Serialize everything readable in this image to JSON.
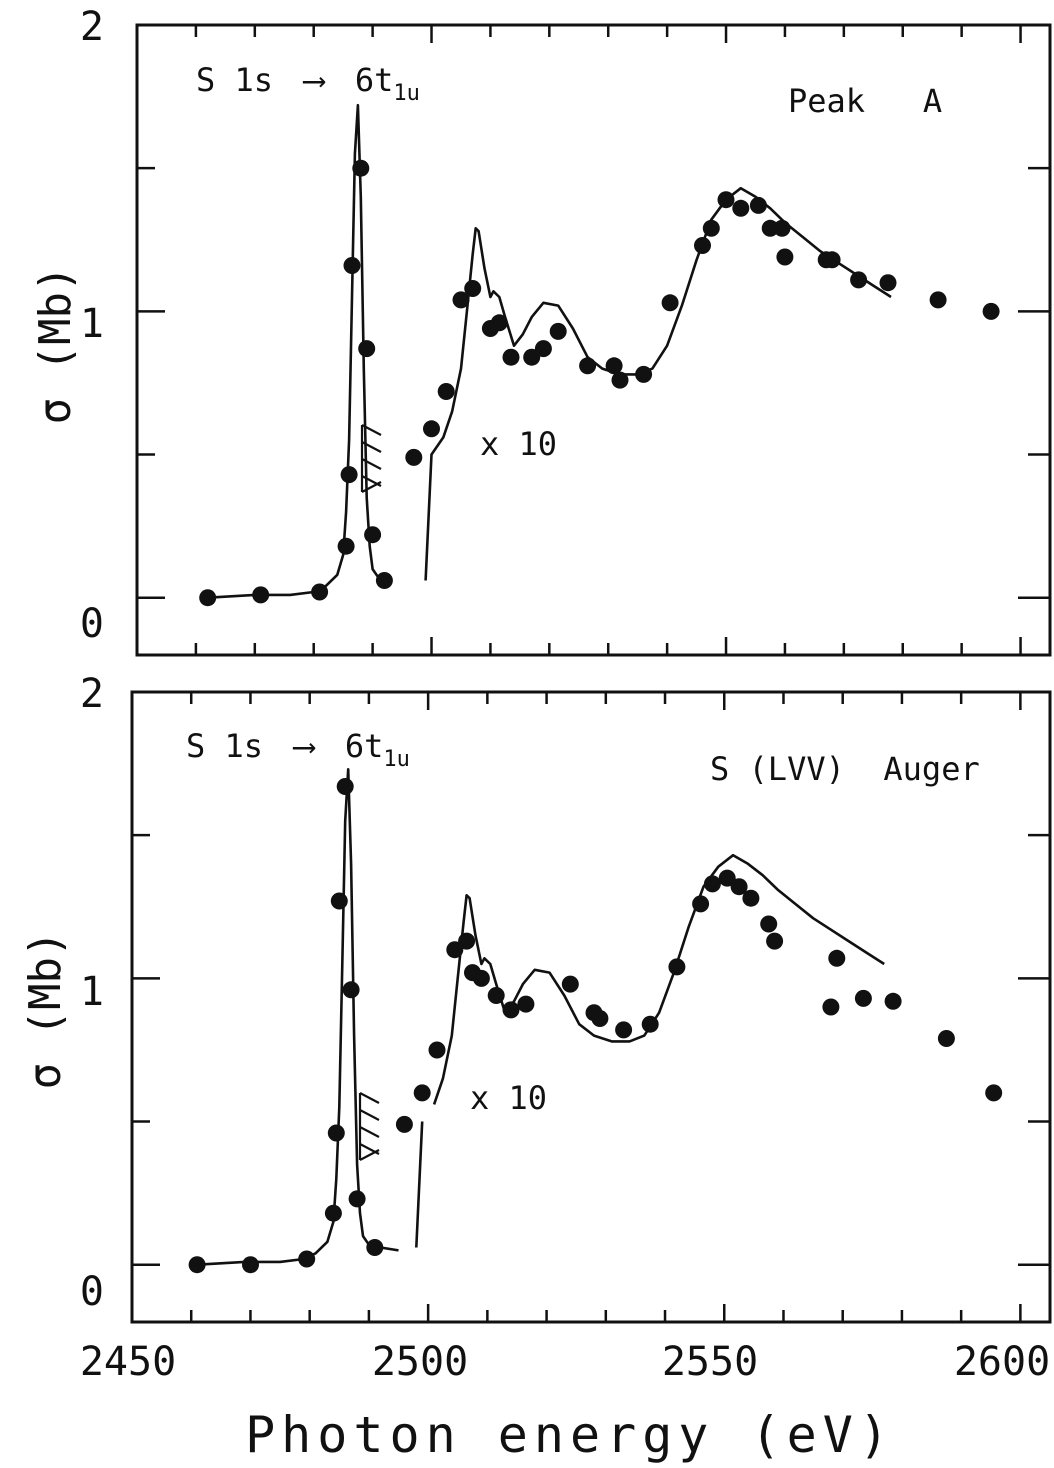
{
  "figure": {
    "xlabel": "Photon energy (eV)",
    "x_tick_labels": [
      "2450",
      "2500",
      "2550",
      "2600"
    ],
    "colors": {
      "ink": "#111111",
      "background": "#ffffff"
    }
  },
  "chart_data": [
    {
      "type": "scatter",
      "panel": "top",
      "title": "",
      "annotations": {
        "transition_prefix": "S 1s",
        "arrow": "⟶",
        "transition_main": "6t",
        "transition_sub": "1u",
        "channel": "Peak   A",
        "scale_note": "x 10"
      },
      "ylabel": "σ (Mb)",
      "y_tick_labels": [
        "0",
        "1",
        "2"
      ],
      "xlim": [
        2450,
        2605
      ],
      "ylim": [
        -0.2,
        2.0
      ],
      "grid": false,
      "series": [
        {
          "kind": "points",
          "x": [
            2462,
            2471,
            2481,
            2485.5,
            2486,
            2486.5,
            2488,
            2489,
            2490,
            2492,
            2497,
            2500,
            2502.5,
            2505,
            2507,
            2510,
            2511.5,
            2513.5,
            2517,
            2519,
            2521.5,
            2526.5,
            2531,
            2532,
            2536,
            2540.5,
            2546,
            2547.5,
            2550,
            2552.5,
            2555.5,
            2557.5,
            2559.5,
            2560,
            2567,
            2568,
            2572.5,
            2577.5,
            2586,
            2595
          ],
          "y": [
            0.0,
            0.01,
            0.02,
            0.18,
            0.43,
            1.16,
            1.5,
            0.87,
            0.22,
            0.06,
            0.49,
            0.59,
            0.72,
            1.04,
            1.08,
            0.94,
            0.96,
            0.84,
            0.84,
            0.87,
            0.93,
            0.81,
            0.81,
            0.76,
            0.78,
            1.03,
            1.23,
            1.29,
            1.39,
            1.36,
            1.37,
            1.29,
            1.29,
            1.19,
            1.18,
            1.18,
            1.11,
            1.1,
            1.04,
            1.0
          ]
        },
        {
          "kind": "curve",
          "x": [
            2462,
            2470,
            2476,
            2480,
            2482,
            2484,
            2485,
            2485.5,
            2486,
            2486.5,
            2487,
            2487.5,
            2488,
            2488.5,
            2489,
            2489.5,
            2490,
            2491,
            2493,
            2496,
            2499,
            2500,
            2502,
            2503.5,
            2505,
            2506,
            2507,
            2507.5,
            2508,
            2509,
            2510,
            2510.5,
            2511.5,
            2512.5,
            2514,
            2515.5,
            2517,
            2519,
            2521.5,
            2524,
            2526.5,
            2529,
            2532,
            2535,
            2537.5,
            2540,
            2542.5,
            2545,
            2547.5,
            2550,
            2552.5,
            2555,
            2557.5,
            2560,
            2563,
            2566,
            2569,
            2572,
            2575,
            2578
          ],
          "y": [
            0.0,
            0.01,
            0.01,
            0.02,
            0.04,
            0.08,
            0.15,
            0.3,
            0.55,
            1.05,
            1.55,
            1.72,
            1.4,
            0.8,
            0.35,
            0.18,
            0.1,
            0.07,
            0.06,
            0.05,
            0.06,
            0.5,
            0.56,
            0.65,
            0.8,
            1.0,
            1.2,
            1.29,
            1.28,
            1.15,
            1.05,
            1.07,
            1.05,
            0.98,
            0.88,
            0.92,
            0.98,
            1.03,
            1.02,
            0.94,
            0.84,
            0.8,
            0.78,
            0.78,
            0.8,
            0.88,
            1.02,
            1.18,
            1.32,
            1.39,
            1.43,
            1.4,
            1.36,
            1.31,
            1.26,
            1.21,
            1.17,
            1.13,
            1.09,
            1.05
          ]
        }
      ]
    },
    {
      "type": "scatter",
      "panel": "bottom",
      "title": "",
      "annotations": {
        "transition_prefix": "S 1s",
        "arrow": "⟶",
        "transition_main": "6t",
        "transition_sub": "1u",
        "channel": "S (LVV)  Auger",
        "scale_note": "x 10"
      },
      "ylabel": "σ (Mb)",
      "y_tick_labels": [
        "0",
        "1",
        "2"
      ],
      "xlim": [
        2450,
        2605
      ],
      "ylim": [
        -0.2,
        2.0
      ],
      "grid": false,
      "series": [
        {
          "kind": "points",
          "x": [
            2461,
            2470,
            2479.5,
            2484,
            2484.5,
            2485,
            2486,
            2487,
            2488,
            2491,
            2496,
            2499,
            2501.5,
            2504.5,
            2506.5,
            2507.5,
            2509,
            2511.5,
            2514,
            2516.5,
            2524,
            2528,
            2529,
            2533,
            2537.5,
            2542,
            2546,
            2548,
            2550.5,
            2552.5,
            2554.5,
            2557.5,
            2558.5,
            2568,
            2569,
            2573.5,
            2578.5,
            2587.5,
            2595.5
          ],
          "y": [
            0.0,
            0.0,
            0.02,
            0.18,
            0.46,
            1.27,
            1.67,
            0.96,
            0.23,
            0.06,
            0.49,
            0.6,
            0.75,
            1.1,
            1.13,
            1.02,
            1.0,
            0.94,
            0.89,
            0.91,
            0.98,
            0.88,
            0.86,
            0.82,
            0.84,
            1.04,
            1.26,
            1.33,
            1.35,
            1.32,
            1.28,
            1.19,
            1.13,
            0.9,
            1.07,
            0.93,
            0.92,
            0.79,
            0.6
          ]
        },
        {
          "kind": "curve",
          "x": [
            2461,
            2469,
            2475,
            2479,
            2481,
            2483,
            2484,
            2484.5,
            2485,
            2485.5,
            2486,
            2486.5,
            2487,
            2487.5,
            2488,
            2488.5,
            2489,
            2490,
            2492,
            2495,
            2498,
            2499,
            2501,
            2502.5,
            2504,
            2505,
            2506,
            2506.5,
            2507,
            2508,
            2509,
            2509.5,
            2510.5,
            2511.5,
            2513,
            2514.5,
            2516,
            2518,
            2520.5,
            2523,
            2525.5,
            2528,
            2531,
            2534,
            2536.5,
            2539,
            2541.5,
            2544,
            2546.5,
            2549,
            2551.5,
            2554,
            2556.5,
            2559,
            2562,
            2565,
            2568,
            2571,
            2574,
            2577
          ],
          "y": [
            0.0,
            0.01,
            0.01,
            0.02,
            0.04,
            0.08,
            0.15,
            0.3,
            0.55,
            1.05,
            1.55,
            1.73,
            1.4,
            0.8,
            0.35,
            0.18,
            0.1,
            0.07,
            0.06,
            0.05,
            0.06,
            0.5,
            0.56,
            0.65,
            0.8,
            1.0,
            1.2,
            1.29,
            1.28,
            1.15,
            1.05,
            1.07,
            1.05,
            0.98,
            0.88,
            0.92,
            0.98,
            1.03,
            1.02,
            0.94,
            0.84,
            0.8,
            0.78,
            0.78,
            0.8,
            0.88,
            1.02,
            1.18,
            1.32,
            1.39,
            1.43,
            1.4,
            1.36,
            1.31,
            1.26,
            1.21,
            1.17,
            1.13,
            1.09,
            1.05
          ]
        }
      ]
    }
  ]
}
